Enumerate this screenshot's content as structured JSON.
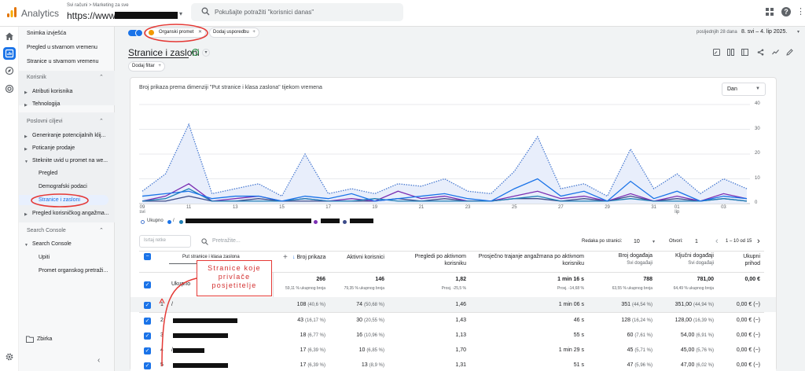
{
  "header": {
    "app_name": "Analytics",
    "account_breadcrumb": "Svi računi > Marketing za sve",
    "property": "https://www.",
    "search_placeholder": "Pokušajte potražiti \"korisnici danas\""
  },
  "sidebar": {
    "top_items": [
      {
        "label": "Snimka izvješća"
      },
      {
        "label": "Pregled u stvarnom vremenu"
      },
      {
        "label": "Stranice u stvarnom vremenu"
      }
    ],
    "section_korisnik": {
      "title": "Korisnik",
      "items": [
        {
          "label": "Atributi korisnika"
        },
        {
          "label": "Tehnologija"
        }
      ]
    },
    "section_poslovni": {
      "title": "Poslovni ciljevi",
      "items": [
        {
          "label": "Generiranje potencijalnih klij..."
        },
        {
          "label": "Poticanje prodaje"
        },
        {
          "label": "Steknite uvid u promet na we..."
        }
      ],
      "subitems": [
        {
          "label": "Pregled"
        },
        {
          "label": "Demografski podaci"
        },
        {
          "label": "Stranice i zasloni"
        }
      ],
      "after_items": [
        {
          "label": "Pregled korisničkog angažma..."
        }
      ]
    },
    "section_search_console": {
      "title": "Search Console",
      "items": [
        {
          "label": "Search Console"
        }
      ],
      "subitems": [
        {
          "label": "Upiti"
        },
        {
          "label": "Promet organskog pretraži..."
        }
      ]
    },
    "library": "Zbirka"
  },
  "filter_bar": {
    "chip_organic": "Organski promet",
    "chip_compare": "Dodaj usporedbu",
    "date_label": "posljednjih 28 dana",
    "date_range": "8. svi – 4. lip 2025."
  },
  "page": {
    "title": "Stranice i zasloni",
    "add_filter": "Dodaj filtar"
  },
  "chart": {
    "title": "Broj prikaza prema dimenziji \"Put stranice i klasa zaslona\" tijekom vremena",
    "granularity": "Dan",
    "legend_total": "Ukupno",
    "legend_first": "/"
  },
  "chart_data": {
    "type": "line",
    "x": [
      "09 svi",
      "10",
      "11",
      "12",
      "13",
      "14",
      "15",
      "16",
      "17",
      "18",
      "19",
      "20",
      "21",
      "22",
      "23",
      "24",
      "25",
      "26",
      "27",
      "28",
      "29",
      "30",
      "31",
      "01 lip",
      "02",
      "03",
      "04"
    ],
    "x_tick_labels": [
      "09",
      "svi",
      "11",
      "13",
      "15",
      "17",
      "19",
      "21",
      "23",
      "25",
      "27",
      "29",
      "31",
      "01",
      "lip",
      "03"
    ],
    "ylim": [
      0,
      40
    ],
    "y_ticks": [
      0,
      10,
      20,
      30,
      40
    ],
    "series": [
      {
        "name": "Ukupno",
        "color": "#4a7bd1",
        "values": [
          5,
          12,
          32,
          4,
          6,
          8,
          3,
          20,
          4,
          6,
          4,
          8,
          7,
          10,
          5,
          4,
          13,
          27,
          6,
          8,
          3,
          22,
          6,
          12,
          4,
          10,
          6
        ]
      },
      {
        "name": "/",
        "color": "#1a73e8",
        "values": [
          3,
          4,
          5,
          2,
          3,
          3,
          1,
          3,
          2,
          4,
          1,
          2,
          3,
          4,
          2,
          1,
          6,
          10,
          3,
          5,
          1,
          9,
          2,
          5,
          1,
          3,
          2
        ]
      },
      {
        "color": "#1e7fb5",
        "values": [
          1,
          2,
          6,
          1,
          1,
          1,
          1,
          2,
          1,
          1,
          2,
          1,
          1,
          1,
          1,
          1,
          2,
          3,
          1,
          1,
          1,
          2,
          1,
          1,
          1,
          2,
          1
        ]
      },
      {
        "color": "#7b2fb3",
        "values": [
          1,
          3,
          8,
          1,
          2,
          3,
          1,
          2,
          1,
          2,
          1,
          5,
          2,
          3,
          1,
          1,
          3,
          5,
          2,
          3,
          1,
          4,
          1,
          3,
          1,
          4,
          2
        ]
      },
      {
        "color": "#3c4b8a",
        "values": [
          1,
          1,
          3,
          1,
          1,
          2,
          1,
          1,
          1,
          1,
          1,
          2,
          1,
          2,
          1,
          1,
          2,
          2,
          1,
          2,
          1,
          3,
          1,
          2,
          1,
          2,
          1
        ]
      }
    ],
    "grid": true,
    "legend": "bottom-left"
  },
  "table_toolbar": {
    "rows_placeholder": "Isrtaj retke",
    "search_placeholder": "Pretražite...",
    "rows_per_page_label": "Redaka po stranici:",
    "rows_per_page": "10",
    "go_to_label": "Otvori:",
    "go_to": "1",
    "pagination": "1 – 10 od 15"
  },
  "table": {
    "dimension_header": "Put stranice i klasa zaslona",
    "columns": [
      {
        "label": "Broj prikaza",
        "sub": ""
      },
      {
        "label": "Aktivni korisnici",
        "sub": ""
      },
      {
        "label": "Pregledi po aktivnom korisniku",
        "sub": ""
      },
      {
        "label": "Prosječno trajanje angažmana po aktivnom korisniku",
        "sub": ""
      },
      {
        "label": "Broj događaja",
        "sub": "Svi događaji"
      },
      {
        "label": "Ključni događaji",
        "sub": "Svi događaji"
      },
      {
        "label": "Ukupni prihod",
        "sub": ""
      }
    ],
    "total": {
      "label": "Ukupno",
      "values": [
        "266",
        "146",
        "1,82",
        "1 min 16 s",
        "788",
        "781,00",
        "0,00 €"
      ],
      "subs": [
        "59,11 % ukupnog broja",
        "79,35 % ukupnog broja",
        "Prosj. -25,5 %",
        "Prosj. -14,68 %",
        "63,55 % ukupnog broja",
        "64,49 % ukupnog broja",
        ""
      ]
    },
    "rows": [
      {
        "num": "1",
        "page": "/",
        "views": "108",
        "views_pct": "(40,6 %)",
        "users": "74",
        "users_pct": "(50,68 %)",
        "vpu": "1,46",
        "dur": "1 min 06 s",
        "events": "351",
        "events_pct": "(44,54 %)",
        "key": "351,00",
        "key_pct": "(44,94 %)",
        "rev": "0,00 € (−)"
      },
      {
        "num": "2",
        "page": "",
        "views": "43",
        "views_pct": "(16,17 %)",
        "users": "30",
        "users_pct": "(20,55 %)",
        "vpu": "1,43",
        "dur": "46 s",
        "events": "128",
        "events_pct": "(16,24 %)",
        "key": "128,00",
        "key_pct": "(16,39 %)",
        "rev": "0,00 € (−)"
      },
      {
        "num": "3",
        "page": "",
        "views": "18",
        "views_pct": "(6,77 %)",
        "users": "16",
        "users_pct": "(10,96 %)",
        "vpu": "1,13",
        "dur": "55 s",
        "events": "60",
        "events_pct": "(7,61 %)",
        "key": "54,00",
        "key_pct": "(6,91 %)",
        "rev": "0,00 € (−)"
      },
      {
        "num": "4",
        "page": "/",
        "views": "17",
        "views_pct": "(6,39 %)",
        "users": "10",
        "users_pct": "(6,85 %)",
        "vpu": "1,70",
        "dur": "1 min 29 s",
        "events": "45",
        "events_pct": "(5,71 %)",
        "key": "45,00",
        "key_pct": "(5,76 %)",
        "rev": "0,00 € (−)"
      },
      {
        "num": "5",
        "page": "",
        "views": "17",
        "views_pct": "(6,39 %)",
        "users": "13",
        "users_pct": "(8,9 %)",
        "vpu": "1,31",
        "dur": "51 s",
        "events": "47",
        "events_pct": "(5,96 %)",
        "key": "47,00",
        "key_pct": "(6,02 %)",
        "rev": "0,00 € (−)"
      }
    ]
  },
  "annotation": {
    "text": "Stranice koje privlače posjetitelje"
  }
}
